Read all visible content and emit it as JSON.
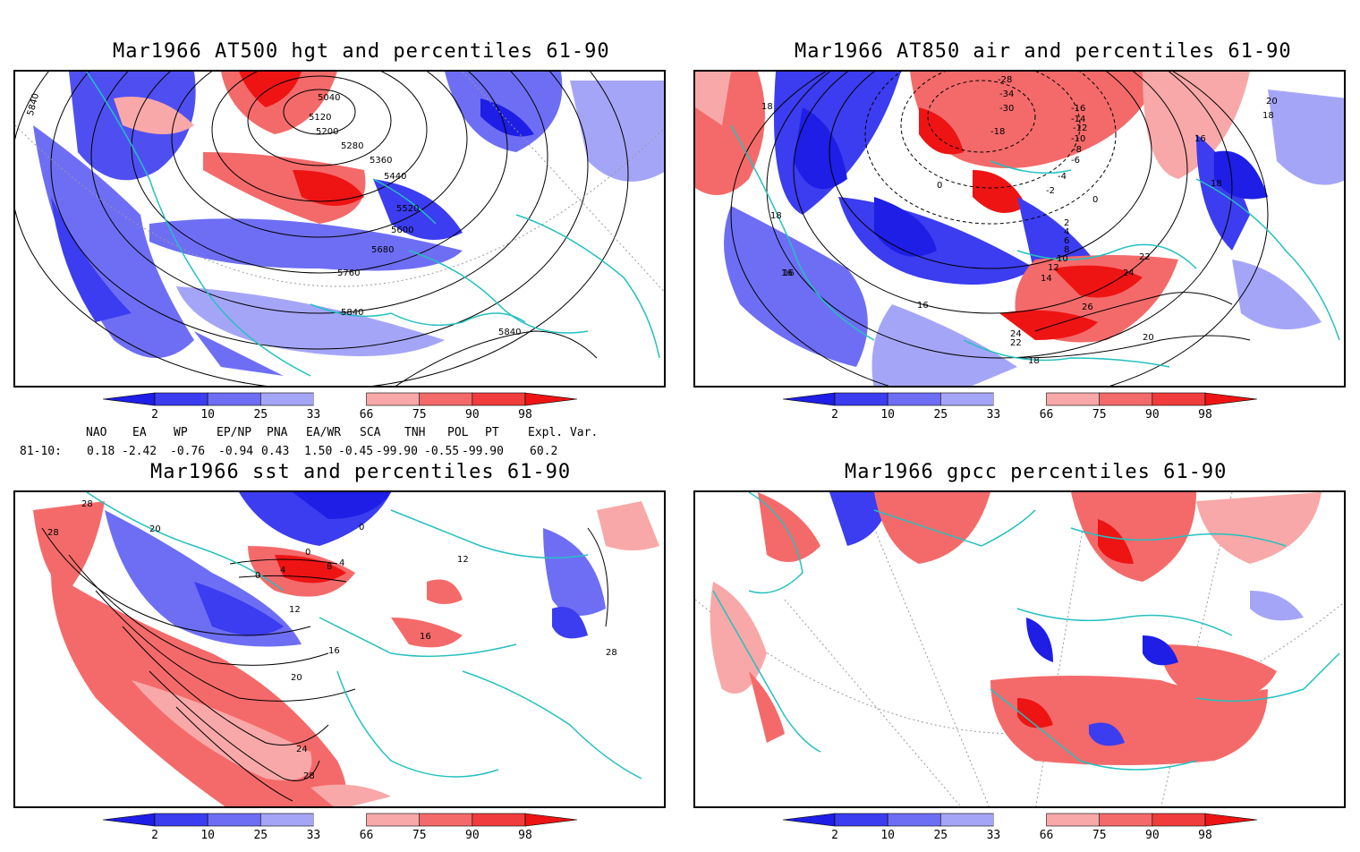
{
  "panels": {
    "hgt": {
      "title": "Mar1966 AT500 hgt and percentiles 61-90",
      "contour_labels": [
        "5040",
        "5120",
        "5200",
        "5280",
        "5360",
        "5440",
        "5520",
        "5600",
        "5680",
        "5760",
        "5840",
        "5840",
        "5840"
      ]
    },
    "air": {
      "title": "Mar1966 AT850 air and percentiles 61-90",
      "contour_labels": [
        "-28",
        "-34",
        "-30",
        "-14",
        "-18",
        "-16",
        "-12",
        "-10",
        "-8",
        "-6",
        "-4",
        "-2",
        "0",
        "0",
        "2",
        "4",
        "6",
        "8",
        "10",
        "12",
        "14",
        "16",
        "16",
        "16",
        "18",
        "18",
        "18",
        "18",
        "20",
        "20",
        "22",
        "24",
        "24",
        "26",
        "22",
        "18",
        "16"
      ]
    },
    "sst": {
      "title": "Mar1966 sst and percentiles 61-90",
      "contour_labels": [
        "28",
        "28",
        "20",
        "0",
        "4",
        "8",
        "0",
        "4",
        "0",
        "12",
        "16",
        "20",
        "24",
        "28",
        "16",
        "28",
        "12"
      ]
    },
    "gpcc": {
      "title": "Mar1966 gpcc percentiles 61-90"
    }
  },
  "colorbar": {
    "tick_labels": [
      "2",
      "10",
      "25",
      "33",
      "66",
      "75",
      "90",
      "98"
    ],
    "colors": [
      "#1e1ee6",
      "#3c3cf0",
      "#6e6ef5",
      "#a5a5f8",
      "#ffffff",
      "#f8a8a8",
      "#f46a6a",
      "#f03c3c",
      "#ee1414"
    ]
  },
  "teleconnections": {
    "headers": [
      "NAO",
      "EA",
      "WP",
      "EP/NP",
      "PNA",
      "EA/WR",
      "SCA",
      "TNH",
      "POL",
      "PT",
      "Expl. Var."
    ],
    "period": "81-10:",
    "values": [
      "0.18",
      "-2.42",
      "-0.76",
      "-0.94",
      "0.43",
      "1.50",
      "-0.45",
      "-99.90",
      "-0.55",
      "-99.90",
      "60.2"
    ]
  }
}
